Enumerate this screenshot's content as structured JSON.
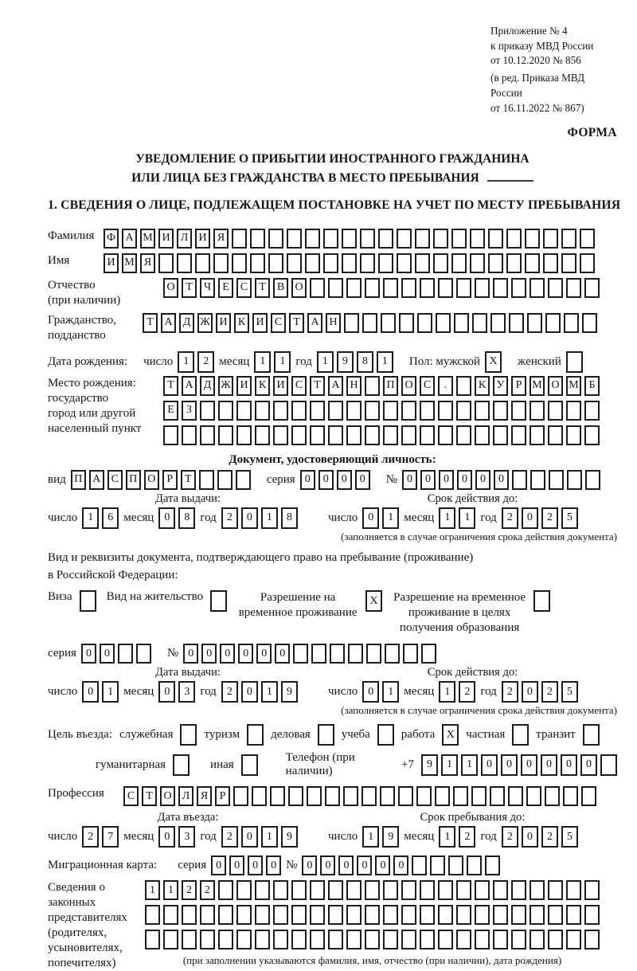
{
  "doc": {
    "header_lines": [
      "Приложение № 4",
      "к приказу МВД России",
      "от 10.12.2020 № 856"
    ],
    "amend_lines": [
      "(в ред. Приказа МВД России",
      "от 16.11.2022 № 867)"
    ],
    "form_label": "ФОРМА",
    "title_line1": "УВЕДОМЛЕНИЕ О ПРИБЫТИИ ИНОСТРАННОГО ГРАЖДАНИНА",
    "title_line2": "ИЛИ ЛИЦА БЕЗ ГРАЖДАНСТВА В МЕСТО ПРЕБЫВАНИЯ",
    "section1": "1. СВЕДЕНИЯ О ЛИЦЕ, ПОДЛЕЖАЩЕМ ПОСТАНОВКЕ НА УЧЕТ ПО МЕСТУ ПРЕБЫВАНИЯ"
  },
  "date_words": {
    "day": "число",
    "month": "месяц",
    "year": "год"
  },
  "person": {
    "surname": {
      "label": "Фамилия",
      "value": "ФАМИЛИЯ"
    },
    "firstname": {
      "label": "Имя",
      "value": "ИМЯ"
    },
    "patronymic": {
      "label1": "Отчество",
      "label2": "(при наличии)",
      "value": "ОТЧЕСТВО"
    },
    "citizenship": {
      "label1": "Гражданство,",
      "label2": "подданство",
      "value": "ТАДЖИКИСТАН"
    },
    "birth_date": {
      "label": "Дата рождения:",
      "day": "12",
      "month": "11",
      "year": "1981"
    },
    "sex": {
      "label_male": "Пол: мужской",
      "male_mark": "X",
      "label_female": "женский",
      "female_mark": ""
    },
    "birth_place": {
      "label1": "Место рождения:",
      "label2": "государство",
      "label3": "город или другой",
      "label4": "населенный пункт",
      "line1": "ТАДЖИКИСТАН ПОС. КУРМОМБ",
      "line2": "ЕЗ",
      "line3": ""
    }
  },
  "identity_doc": {
    "heading": "Документ, удостоверяющий личность:",
    "kind_label": "вид",
    "kind": "ПАСПОРТ",
    "series_label": "серия",
    "series": "0000",
    "number_label": "№",
    "number": "000000",
    "issue_heading": "Дата выдачи:",
    "issue": {
      "day": "16",
      "month": "08",
      "year": "2018"
    },
    "expiry_heading": "Срок действия до:",
    "expiry": {
      "day": "01",
      "month": "11",
      "year": "2025"
    },
    "note": "(заполняется в случае ограничения срока действия документа)"
  },
  "stay_doc": {
    "intro1": "Вид и реквизиты документа, подтверждающего право на пребывание (проживание)",
    "intro2": "в Российской Федерации:",
    "visa_label": "Виза",
    "visa_mark": "",
    "residence_permit_label": "Вид на жительство",
    "residence_permit_mark": "",
    "temp_permit_label": "Разрешение на временное проживание",
    "temp_permit_mark": "X",
    "edu_permit_label": "Разрешение на временное проживание в целях получения образования",
    "edu_permit_mark": "",
    "series_label": "серия",
    "series": "00",
    "number_label": "№",
    "number": "000000",
    "issue_heading": "Дата выдачи:",
    "issue": {
      "day": "01",
      "month": "03",
      "year": "2019"
    },
    "expiry_heading": "Срок действия до:",
    "expiry": {
      "day": "01",
      "month": "12",
      "year": "2025"
    },
    "note": "(заполняется в случае ограничения срока действия документа)"
  },
  "visit": {
    "purpose_label": "Цель въезда:",
    "opt1": {
      "label": "служебная",
      "mark": ""
    },
    "opt2": {
      "label": "туризм",
      "mark": ""
    },
    "opt3": {
      "label": "деловая",
      "mark": ""
    },
    "opt4": {
      "label": "учеба",
      "mark": ""
    },
    "opt5": {
      "label": "работа",
      "mark": "X"
    },
    "opt6": {
      "label": "частная",
      "mark": ""
    },
    "opt7": {
      "label": "транзит",
      "mark": ""
    },
    "opt8": {
      "label": "гуманитарная",
      "mark": ""
    },
    "opt9": {
      "label": "иная",
      "mark": ""
    },
    "phone_label": "Телефон (при наличии)",
    "phone_prefix": "+7",
    "phone": "911000000"
  },
  "profession": {
    "label": "Профессия",
    "value": "СТОЛЯР"
  },
  "entry": {
    "date_heading": "Дата въезда:",
    "date": {
      "day": "27",
      "month": "03",
      "year": "2019"
    },
    "until_heading": "Срок пребывания до:",
    "until": {
      "day": "19",
      "month": "12",
      "year": "2025"
    }
  },
  "migration_card": {
    "label": "Миграционная карта:",
    "series_label": "серия",
    "series": "0000",
    "number_label": "№",
    "number": "000000"
  },
  "representatives": {
    "label1": "Сведения о",
    "label2": "законных",
    "label3": "представителях",
    "label4": "(родителях,",
    "label5": "усыновителях,",
    "label6": "попечителях)",
    "line1": "1122",
    "line2": "",
    "line3": "",
    "note": "(при заполнении указываются фамилия, имя, отчество (при наличии), дата рождения)"
  }
}
